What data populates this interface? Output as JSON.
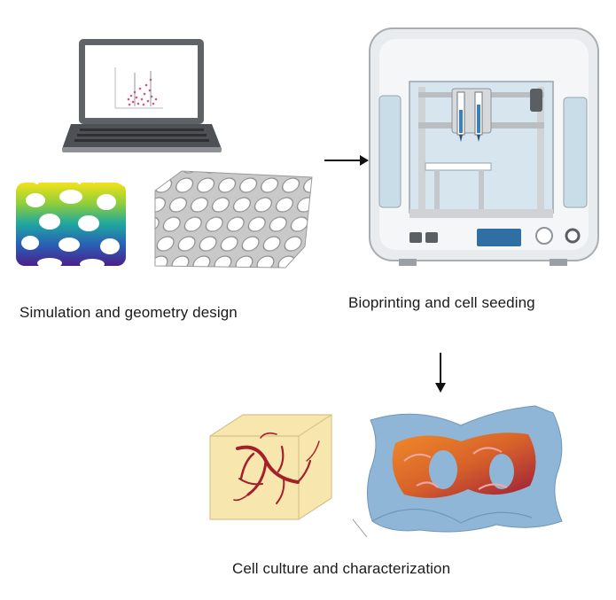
{
  "stages": {
    "simulation": {
      "label": "Simulation and geometry design"
    },
    "bioprinting": {
      "label": "Bioprinting and cell seeding"
    },
    "culture": {
      "label": "Cell culture and characterization"
    }
  },
  "colors": {
    "printer_body": "#e9ecef",
    "printer_window": "#d7e6ee",
    "display": "#2f6fa3",
    "gyroid_blue": "#8fb6d6",
    "gyroid_orange": "#d8622a",
    "gyroid_red": "#9b1c3a",
    "cube_fill": "#f7e6ad",
    "vessel": "#a3202b"
  },
  "icons": [
    "laptop-icon",
    "bioprinter-icon",
    "arrow-right-icon",
    "arrow-down-icon",
    "gyroid-scaffold-icon",
    "porous-lattice-icon",
    "vascular-cube-icon",
    "seeded-gyroid-icon"
  ]
}
